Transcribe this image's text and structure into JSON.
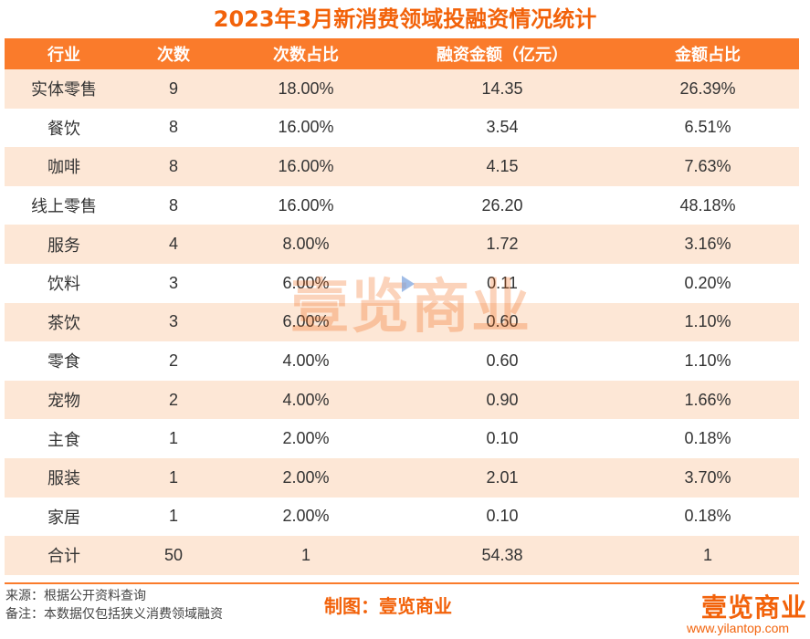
{
  "title": "2023年3月新消费领域投融资情况统计",
  "chart_data": {
    "type": "table",
    "columns": [
      "行业",
      "次数",
      "次数占比",
      "融资金额（亿元）",
      "金额占比"
    ],
    "rows": [
      [
        "实体零售",
        "9",
        "18.00%",
        "14.35",
        "26.39%"
      ],
      [
        "餐饮",
        "8",
        "16.00%",
        "3.54",
        "6.51%"
      ],
      [
        "咖啡",
        "8",
        "16.00%",
        "4.15",
        "7.63%"
      ],
      [
        "线上零售",
        "8",
        "16.00%",
        "26.20",
        "48.18%"
      ],
      [
        "服务",
        "4",
        "8.00%",
        "1.72",
        "3.16%"
      ],
      [
        "饮料",
        "3",
        "6.00%",
        "0.11",
        "0.20%"
      ],
      [
        "茶饮",
        "3",
        "6.00%",
        "0.60",
        "1.10%"
      ],
      [
        "零食",
        "2",
        "4.00%",
        "0.60",
        "1.10%"
      ],
      [
        "宠物",
        "2",
        "4.00%",
        "0.90",
        "1.66%"
      ],
      [
        "主食",
        "1",
        "2.00%",
        "0.10",
        "0.18%"
      ],
      [
        "服装",
        "1",
        "2.00%",
        "2.01",
        "3.70%"
      ],
      [
        "家居",
        "1",
        "2.00%",
        "0.10",
        "0.18%"
      ]
    ],
    "total": [
      "合计",
      "50",
      "1",
      "54.38",
      "1"
    ]
  },
  "footer": {
    "source": "来源：根据公开资料查询",
    "note": "备注：本数据仅包括狭义消费领域融资",
    "maker": "制图：壹览商业"
  },
  "watermark": "壹览商业",
  "logo": {
    "text": "壹览商业",
    "url": "www.yilantop.com"
  },
  "colors": {
    "accent": "#f2620a",
    "header_bg": "#fa7b2b",
    "stripe_bg": "#fde7d6"
  }
}
